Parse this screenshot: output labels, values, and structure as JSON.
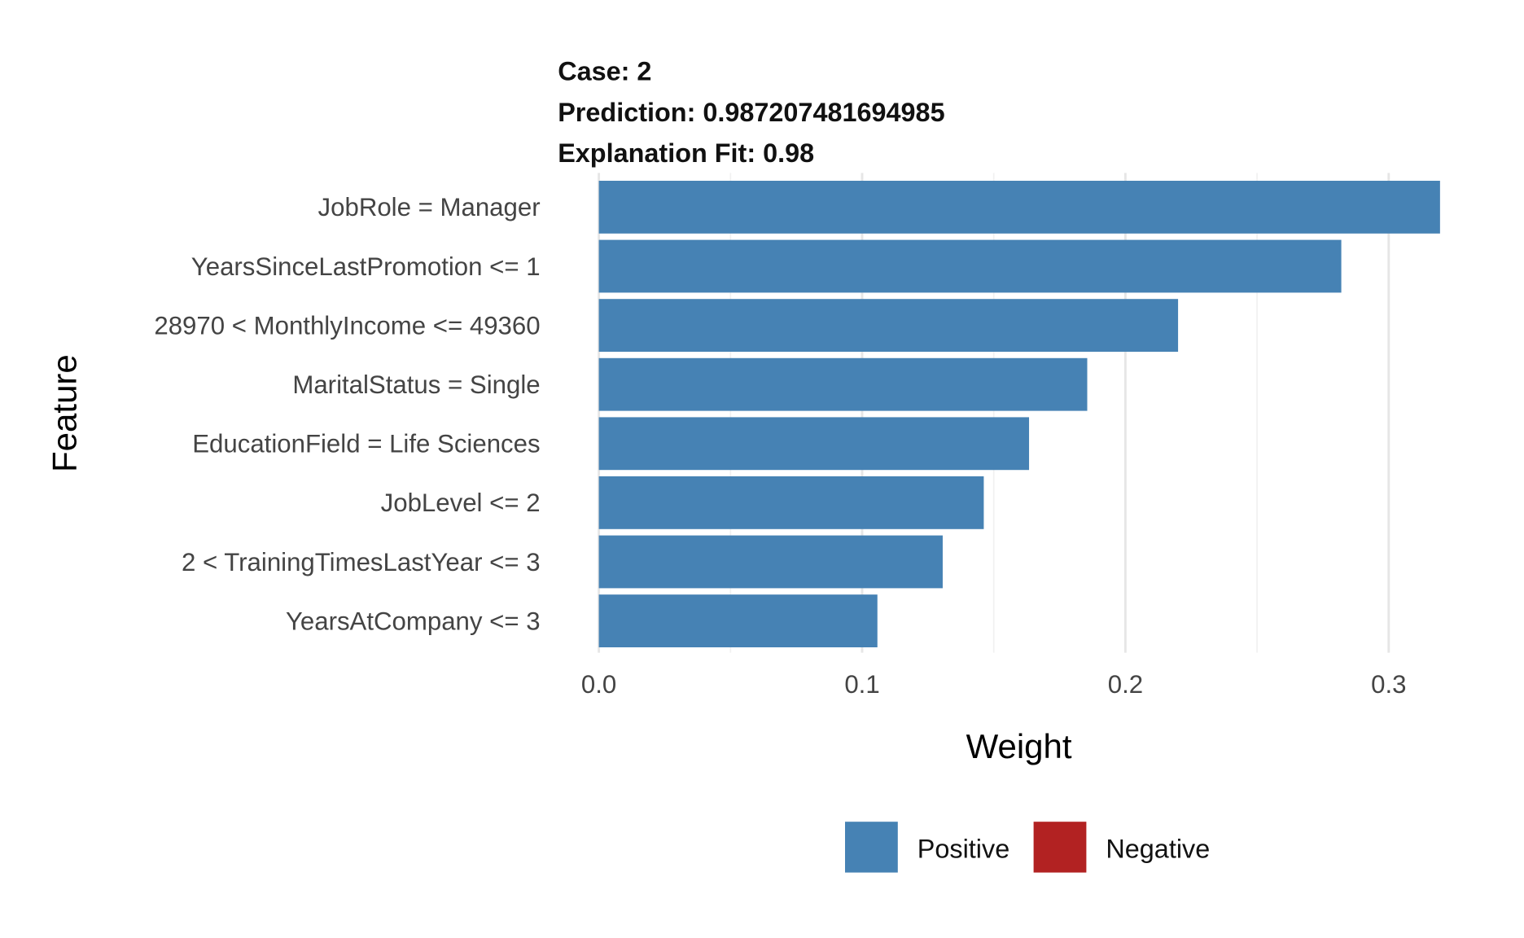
{
  "chart_data": {
    "type": "bar",
    "orientation": "horizontal",
    "title_lines": [
      "Case: 2",
      "Prediction: 0.987207481694985",
      "Explanation Fit: 0.98"
    ],
    "xlabel": "Weight",
    "ylabel": "Feature",
    "xlim": [
      0,
      0.32
    ],
    "xticks": [
      0.0,
      0.1,
      0.2,
      0.3
    ],
    "xtick_labels": [
      "0.0",
      "0.1",
      "0.2",
      "0.3"
    ],
    "grid": true,
    "categories": [
      "JobRole = Manager",
      "YearsSinceLastPromotion <= 1",
      "28970 < MonthlyIncome <= 49360",
      "MaritalStatus = Single",
      "EducationField = Life Sciences",
      "JobLevel <= 2",
      "2 < TrainingTimesLastYear <= 3",
      "YearsAtCompany <= 3"
    ],
    "values": [
      0.3195,
      0.282,
      0.22,
      0.1855,
      0.1634,
      0.1462,
      0.1306,
      0.1058
    ],
    "series_sign": [
      "Positive",
      "Positive",
      "Positive",
      "Positive",
      "Positive",
      "Positive",
      "Positive",
      "Positive"
    ],
    "legend": {
      "placement": "bottom",
      "entries": [
        {
          "label": "Positive",
          "color": "#4682B4"
        },
        {
          "label": "Negative",
          "color": "#B22222"
        }
      ]
    }
  }
}
